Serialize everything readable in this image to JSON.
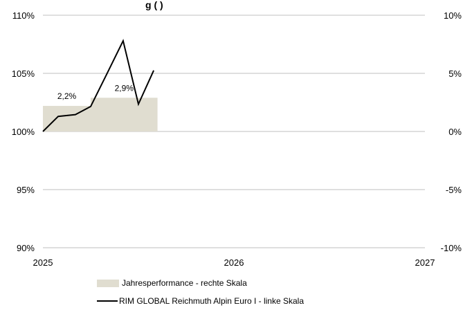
{
  "chart_data": {
    "type": "bar+line",
    "title": "g (                   )",
    "x_ticks": [
      "2025",
      "2026",
      "2027"
    ],
    "x_range": [
      2025,
      2027
    ],
    "left_axis": {
      "ticks": [
        "90%",
        "95%",
        "100%",
        "105%",
        "110%"
      ],
      "range": [
        90,
        110
      ]
    },
    "right_axis": {
      "ticks": [
        "-10%",
        "-5%",
        "0%",
        "5%",
        "10%"
      ],
      "range": [
        -10,
        10
      ]
    },
    "bars": {
      "name": "Jahresperformance - rechte Skala",
      "color": "#e0ddd0",
      "items": [
        {
          "start": 2025.0,
          "end": 2025.25,
          "value": 2.2,
          "label": "2,2%"
        },
        {
          "start": 2025.25,
          "end": 2025.6,
          "value": 2.9,
          "label": "2,9%"
        }
      ]
    },
    "line": {
      "name": "RIM GLOBAL Reichmuth Alpin Euro I - linke Skala",
      "color": "#000000",
      "x": [
        2025.0,
        2025.08,
        2025.17,
        2025.25,
        2025.33,
        2025.42,
        2025.5,
        2025.58
      ],
      "y": [
        100.0,
        101.3,
        101.45,
        102.15,
        104.8,
        107.8,
        102.35,
        105.25
      ]
    },
    "grid": "horizontal"
  }
}
